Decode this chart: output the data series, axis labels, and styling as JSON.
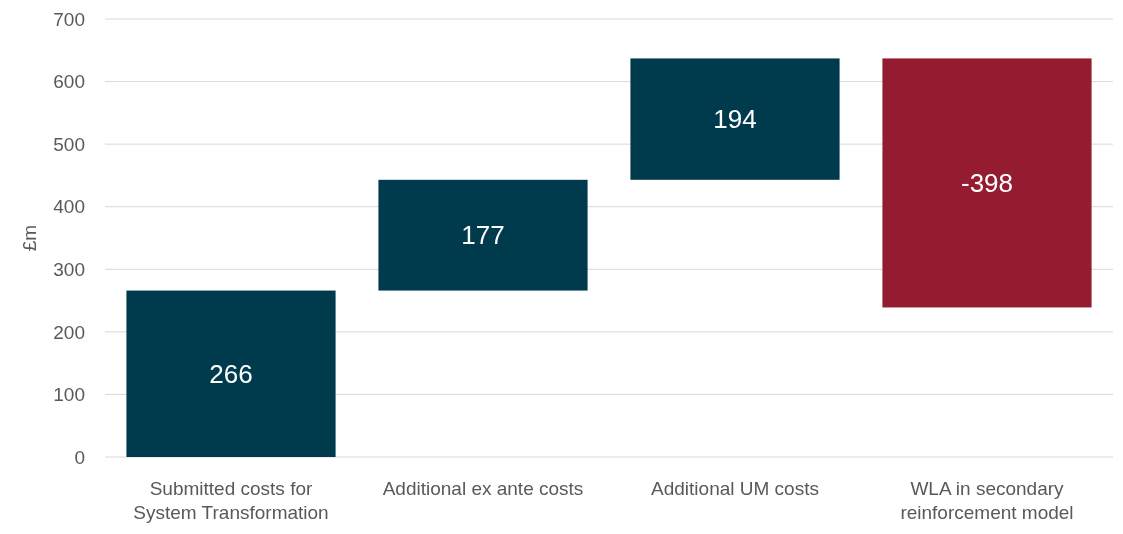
{
  "chart_data": {
    "type": "bar",
    "ylabel": "£m",
    "categories": [
      "Submitted costs for System Transformation",
      "Additional ex ante costs",
      "Additional UM costs",
      "WLA in secondary reinforcement model"
    ],
    "values": [
      266,
      177,
      194,
      -398
    ],
    "base": [
      0,
      266,
      443,
      637
    ],
    "colors": [
      "#003a4d",
      "#003a4d",
      "#003a4d",
      "#951b31"
    ],
    "ylim": [
      0,
      700
    ],
    "yticks": [
      0,
      100,
      200,
      300,
      400,
      500,
      600,
      700
    ],
    "grid": "y",
    "data_labels": true
  }
}
